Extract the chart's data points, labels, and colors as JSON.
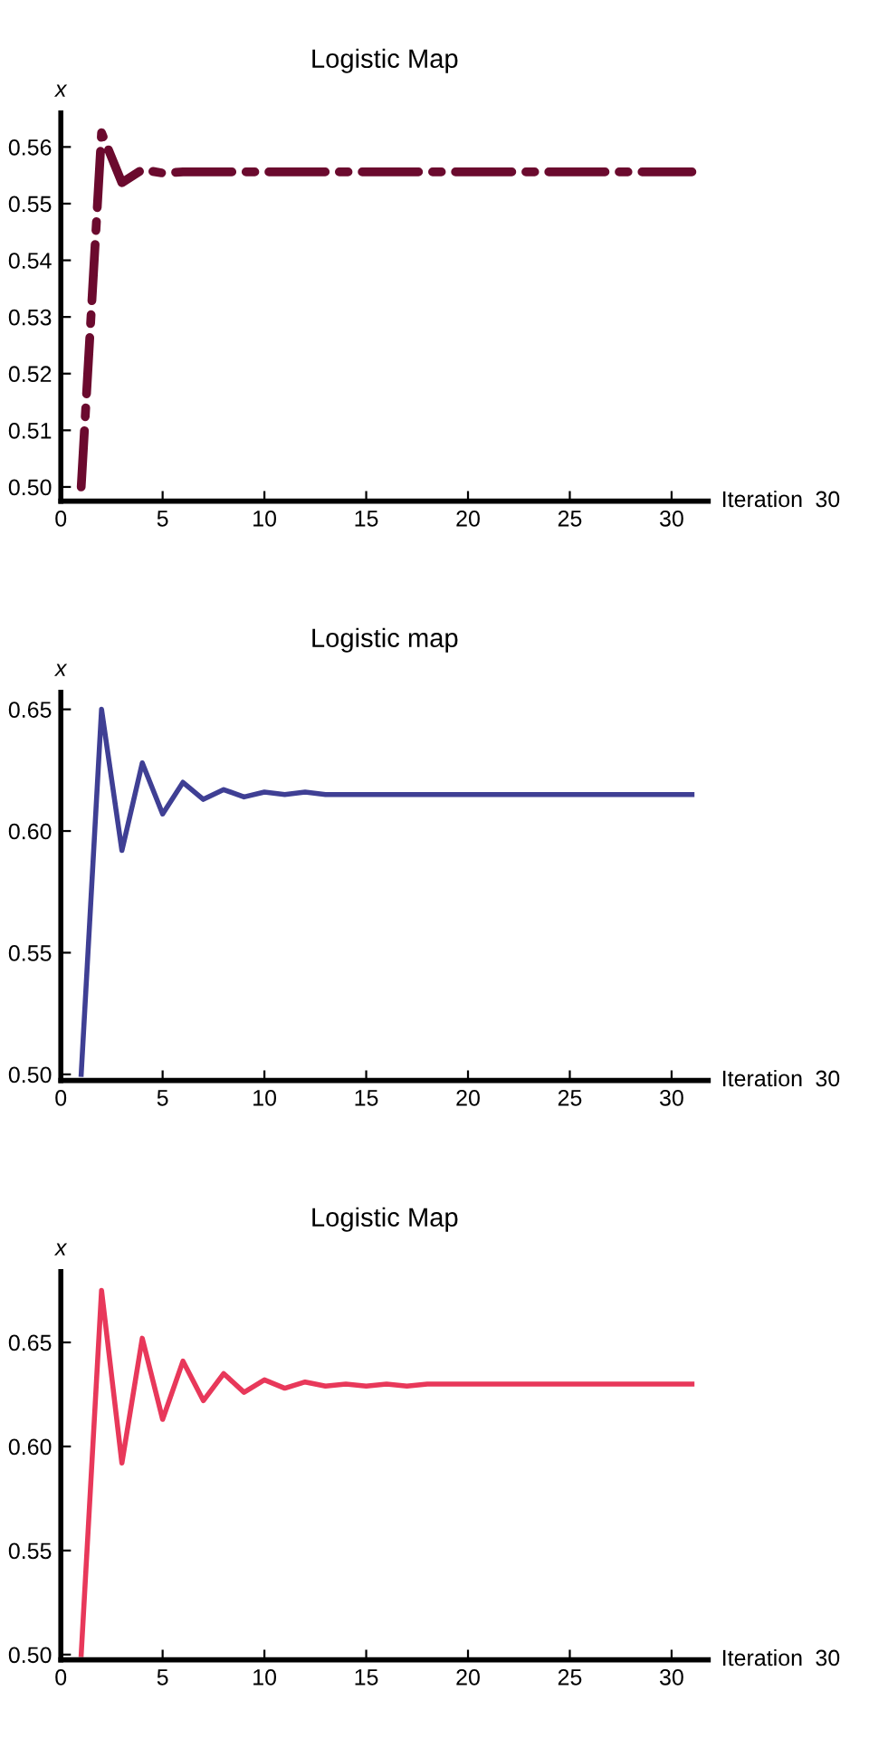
{
  "chart_data": [
    {
      "type": "line",
      "title": "Logistic Map",
      "xlabel": "Iteration",
      "ylabel": "x",
      "annotations": [
        "30"
      ],
      "x": [
        1,
        2,
        3,
        4,
        5,
        6,
        7,
        8,
        9,
        10,
        11,
        12,
        13,
        14,
        15,
        16,
        17,
        18,
        19,
        20,
        21,
        22,
        23,
        24,
        25,
        26,
        27,
        28,
        29,
        30,
        31
      ],
      "series": [
        {
          "color": "#6b0a2e",
          "line_style": "dashdot",
          "values": [
            0.5,
            0.5625,
            0.5537,
            0.556,
            0.5554,
            0.5556,
            0.5556,
            0.5556,
            0.5556,
            0.5556,
            0.5556,
            0.5556,
            0.5556,
            0.5556,
            0.5556,
            0.5556,
            0.5556,
            0.5556,
            0.5556,
            0.5556,
            0.5556,
            0.5556,
            0.5556,
            0.5556,
            0.5556,
            0.5556,
            0.5556,
            0.5556,
            0.5556,
            0.5556,
            0.5556
          ]
        }
      ],
      "xlim": [
        0,
        31.8
      ],
      "xticks": [
        0,
        5,
        10,
        15,
        20,
        25,
        30
      ],
      "ylim": [
        0.4975,
        0.566
      ],
      "yticks": [
        {
          "value": 0.5,
          "label": "0.50"
        },
        {
          "value": 0.51,
          "label": "0.51"
        },
        {
          "value": 0.52,
          "label": "0.52"
        },
        {
          "value": 0.53,
          "label": "0.53"
        },
        {
          "value": 0.54,
          "label": "0.54"
        },
        {
          "value": 0.55,
          "label": "0.55"
        },
        {
          "value": 0.56,
          "label": "0.56"
        }
      ]
    },
    {
      "type": "line",
      "title": "Logistic map",
      "xlabel": "Iteration",
      "ylabel": "x",
      "annotations": [
        "30"
      ],
      "x": [
        1,
        2,
        3,
        4,
        5,
        6,
        7,
        8,
        9,
        10,
        11,
        12,
        13,
        14,
        15,
        16,
        17,
        18,
        19,
        20,
        21,
        22,
        23,
        24,
        25,
        26,
        27,
        28,
        29,
        30,
        31
      ],
      "series": [
        {
          "color": "#3f3f94",
          "line_style": "solid",
          "values": [
            0.5,
            0.65,
            0.592,
            0.628,
            0.607,
            0.62,
            0.613,
            0.617,
            0.614,
            0.616,
            0.615,
            0.616,
            0.615,
            0.615,
            0.615,
            0.615,
            0.615,
            0.615,
            0.615,
            0.615,
            0.615,
            0.615,
            0.615,
            0.615,
            0.615,
            0.615,
            0.615,
            0.615,
            0.615,
            0.615,
            0.615
          ]
        }
      ],
      "xlim": [
        0,
        31.8
      ],
      "xticks": [
        0,
        5,
        10,
        15,
        20,
        25,
        30
      ],
      "ylim": [
        0.4975,
        0.657
      ],
      "yticks": [
        {
          "value": 0.5,
          "label": "0.50"
        },
        {
          "value": 0.55,
          "label": "0.55"
        },
        {
          "value": 0.6,
          "label": "0.60"
        },
        {
          "value": 0.65,
          "label": "0.65"
        }
      ]
    },
    {
      "type": "line",
      "title": "Logistic Map",
      "xlabel": "Iteration",
      "ylabel": "x",
      "annotations": [
        "30"
      ],
      "x": [
        1,
        2,
        3,
        4,
        5,
        6,
        7,
        8,
        9,
        10,
        11,
        12,
        13,
        14,
        15,
        16,
        17,
        18,
        19,
        20,
        21,
        22,
        23,
        24,
        25,
        26,
        27,
        28,
        29,
        30,
        31
      ],
      "series": [
        {
          "color": "#e8385a",
          "line_style": "solid",
          "values": [
            0.5,
            0.675,
            0.592,
            0.652,
            0.613,
            0.641,
            0.622,
            0.635,
            0.626,
            0.632,
            0.628,
            0.631,
            0.629,
            0.63,
            0.629,
            0.63,
            0.629,
            0.63,
            0.63,
            0.63,
            0.63,
            0.63,
            0.63,
            0.63,
            0.63,
            0.63,
            0.63,
            0.63,
            0.63,
            0.63,
            0.63
          ]
        }
      ],
      "xlim": [
        0,
        31.8
      ],
      "xticks": [
        0,
        5,
        10,
        15,
        20,
        25,
        30
      ],
      "ylim": [
        0.4975,
        0.684
      ],
      "yticks": [
        {
          "value": 0.5,
          "label": "0.50"
        },
        {
          "value": 0.55,
          "label": "0.55"
        },
        {
          "value": 0.6,
          "label": "0.60"
        },
        {
          "value": 0.65,
          "label": "0.65"
        }
      ]
    }
  ]
}
